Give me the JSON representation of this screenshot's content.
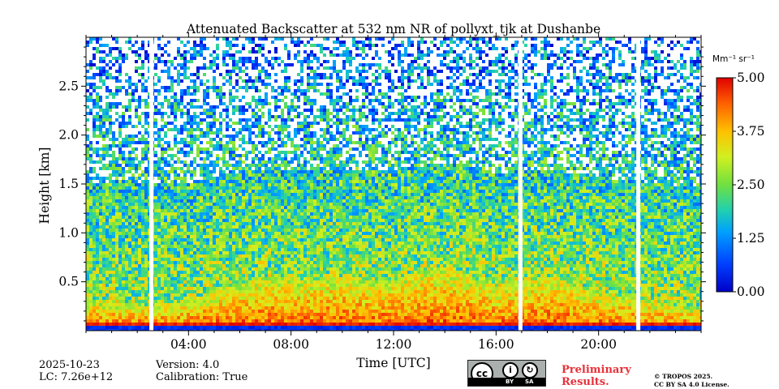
{
  "chart_data": {
    "type": "heatmap",
    "title": "Attenuated Backscatter at 532 nm NR of pollyxt_tjk at Dushanbe",
    "xlabel": "Time [UTC]",
    "ylabel": "Height [km]",
    "xlim": [
      0,
      24
    ],
    "ylim": [
      0,
      3.0
    ],
    "x_ticks": [
      "04:00",
      "08:00",
      "12:00",
      "16:00",
      "20:00"
    ],
    "x_tick_values": [
      4,
      8,
      12,
      16,
      20
    ],
    "y_ticks": [
      "0.5",
      "1.0",
      "1.5",
      "2.0",
      "2.5"
    ],
    "y_tick_values": [
      0.5,
      1.0,
      1.5,
      2.0,
      2.5
    ],
    "colorbar": {
      "label": "Mm⁻¹ sr⁻¹",
      "min": 0.0,
      "max": 5.0,
      "ticks": [
        "0.00",
        "1.25",
        "2.50",
        "3.75",
        "5.00"
      ],
      "tick_values": [
        0.0,
        1.25,
        2.5,
        3.75,
        5.0
      ],
      "colormap": "jet"
    },
    "data_gaps_utc": [
      2.55,
      16.95,
      21.55
    ],
    "aerosol_layer_top_km": [
      [
        0.0,
        0.3
      ],
      [
        2.0,
        0.25
      ],
      [
        4.0,
        0.3
      ],
      [
        5.5,
        0.45
      ],
      [
        7.0,
        0.55
      ],
      [
        8.0,
        0.5
      ],
      [
        10.0,
        0.55
      ],
      [
        12.0,
        0.5
      ],
      [
        12.9,
        0.6
      ],
      [
        14.0,
        0.65
      ],
      [
        16.0,
        0.45
      ],
      [
        18.0,
        0.55
      ],
      [
        20.0,
        0.4
      ],
      [
        22.0,
        0.3
      ],
      [
        24.0,
        0.2
      ]
    ]
  },
  "footer": {
    "date": "2025-10-23",
    "lc": "LC: 7.26e+12",
    "version": "Version: 4.0",
    "calibration": "Calibration: True",
    "license_badge": {
      "icon": "cc-by-sa-icon",
      "by": "BY",
      "sa": "SA"
    },
    "preliminary_line1": "Preliminary",
    "preliminary_line2": "Results.",
    "copyright_line1": "© TROPOS 2025.",
    "copyright_line2": "CC BY SA 4.0 License."
  },
  "colors": {
    "preliminary": "#e8313a",
    "background": "#ffffff"
  }
}
